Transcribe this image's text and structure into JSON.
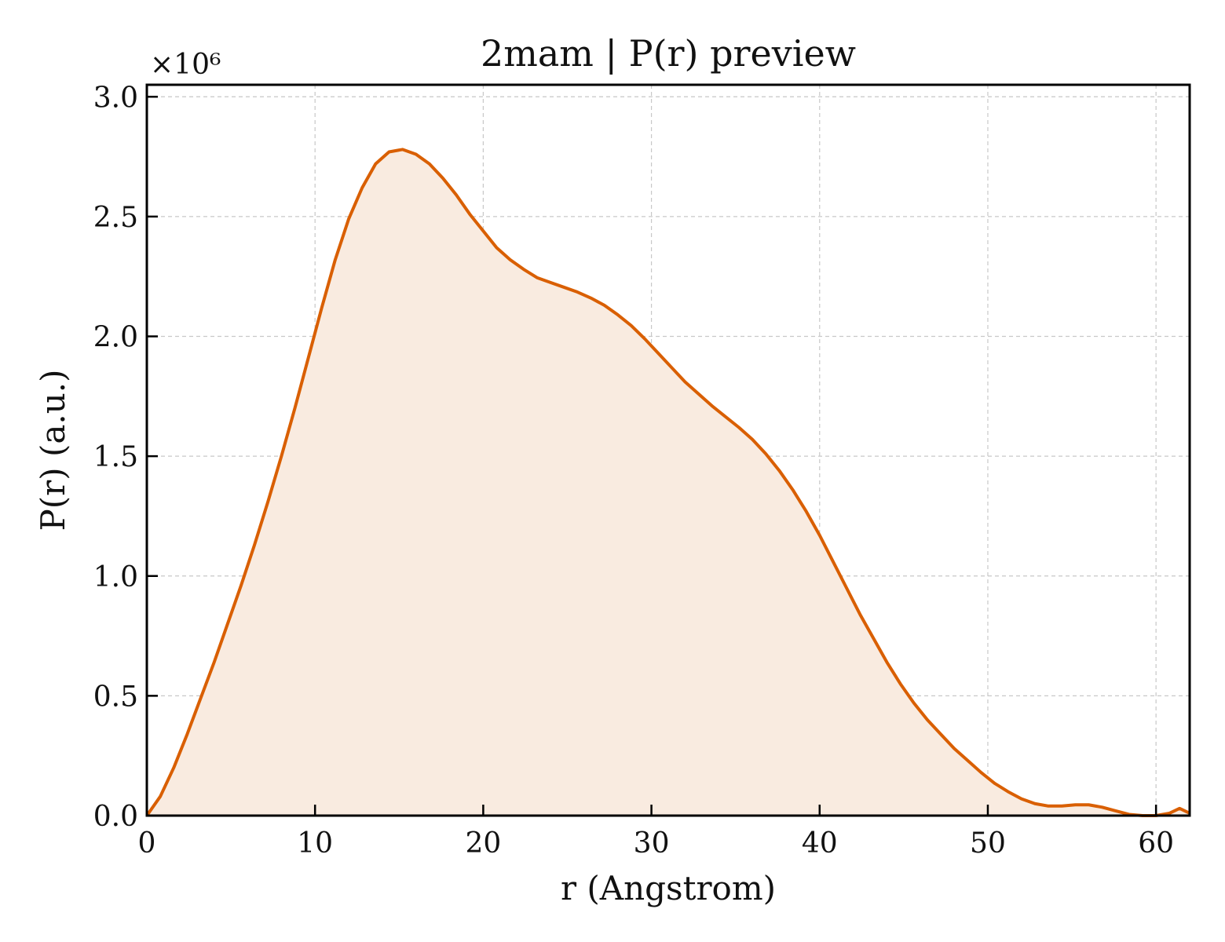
{
  "chart_data": {
    "type": "line",
    "title": "2mam | P(r) preview",
    "xlabel": "r (Angstrom)",
    "ylabel": "P(r) (a.u.)",
    "y_multiplier_label": "×10⁶",
    "xlim": [
      0,
      62
    ],
    "ylim": [
      0,
      3.05
    ],
    "xticks": [
      0,
      10,
      20,
      30,
      40,
      50,
      60
    ],
    "xtick_labels": [
      "0",
      "10",
      "20",
      "30",
      "40",
      "50",
      "60"
    ],
    "yticks": [
      0,
      0.5,
      1.0,
      1.5,
      2.0,
      2.5,
      3.0
    ],
    "ytick_labels": [
      "0.0",
      "0.5",
      "1.0",
      "1.5",
      "2.0",
      "2.5",
      "3.0"
    ],
    "grid": true,
    "line_color": "#d95f02",
    "fill_color": "#f9ebe0",
    "series": [
      {
        "x": [
          0,
          0.8,
          1.6,
          2.4,
          3.2,
          4.0,
          4.8,
          5.6,
          6.4,
          7.2,
          8.0,
          8.8,
          9.6,
          10.4,
          11.2,
          12.0,
          12.8,
          13.6,
          14.4,
          15.2,
          16.0,
          16.8,
          17.6,
          18.4,
          19.2,
          20.0,
          20.8,
          21.6,
          22.4,
          23.2,
          24.0,
          24.8,
          25.6,
          26.4,
          27.2,
          28.0,
          28.8,
          29.6,
          30.4,
          31.2,
          32.0,
          32.8,
          33.6,
          34.4,
          35.2,
          36.0,
          36.8,
          37.6,
          38.4,
          39.2,
          40.0,
          40.8,
          41.6,
          42.4,
          43.2,
          44.0,
          44.8,
          45.6,
          46.4,
          47.2,
          48.0,
          48.8,
          49.6,
          50.4,
          51.2,
          52.0,
          52.8,
          53.6,
          54.4,
          55.2,
          56.0,
          56.8,
          57.6,
          58.4,
          59.2,
          60.0,
          60.8,
          61.4,
          62.0
        ],
        "y": [
          0.0,
          0.08,
          0.2,
          0.34,
          0.49,
          0.64,
          0.8,
          0.96,
          1.13,
          1.31,
          1.5,
          1.7,
          1.91,
          2.12,
          2.32,
          2.49,
          2.62,
          2.72,
          2.77,
          2.78,
          2.76,
          2.72,
          2.66,
          2.59,
          2.51,
          2.44,
          2.37,
          2.32,
          2.28,
          2.245,
          2.225,
          2.205,
          2.185,
          2.16,
          2.13,
          2.09,
          2.045,
          1.99,
          1.93,
          1.87,
          1.81,
          1.76,
          1.71,
          1.665,
          1.62,
          1.57,
          1.51,
          1.44,
          1.36,
          1.27,
          1.17,
          1.06,
          0.95,
          0.84,
          0.74,
          0.64,
          0.55,
          0.47,
          0.4,
          0.34,
          0.28,
          0.23,
          0.18,
          0.135,
          0.1,
          0.07,
          0.05,
          0.04,
          0.04,
          0.045,
          0.045,
          0.035,
          0.02,
          0.005,
          0.0,
          0.0,
          0.01,
          0.03,
          0.01
        ]
      }
    ]
  }
}
